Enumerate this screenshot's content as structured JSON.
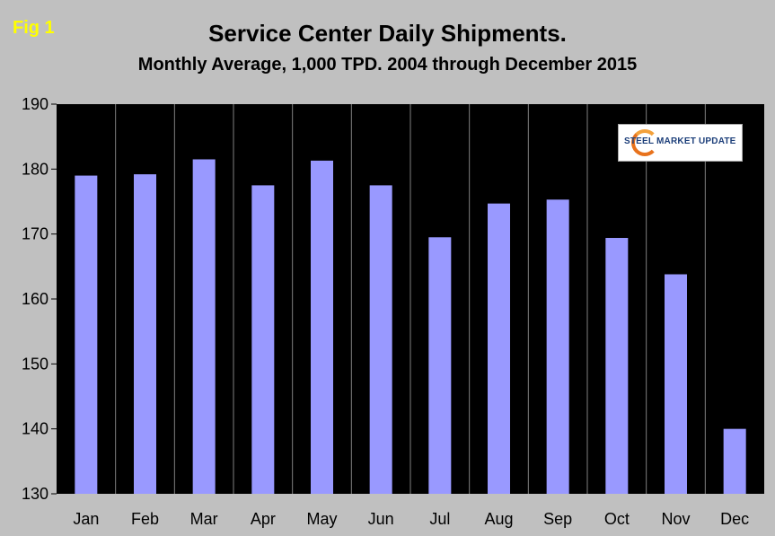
{
  "fig_label": "Fig 1",
  "chart_data": {
    "type": "bar",
    "title": "Service Center Daily Shipments.",
    "subtitle": "Monthly Average, 1,000 TPD.  2004 through December 2015",
    "categories": [
      "Jan",
      "Feb",
      "Mar",
      "Apr",
      "May",
      "Jun",
      "Jul",
      "Aug",
      "Sep",
      "Oct",
      "Nov",
      "Dec"
    ],
    "values": [
      179.0,
      179.2,
      181.5,
      177.5,
      181.3,
      177.5,
      169.5,
      174.7,
      175.3,
      169.4,
      163.8,
      140.0
    ],
    "ylim": [
      130,
      190
    ],
    "yticks": [
      130,
      140,
      150,
      160,
      170,
      180,
      190
    ],
    "grid": "vertical",
    "bar_color": "#9999ff",
    "plot_background": "#000000",
    "xlabel": "",
    "ylabel": ""
  },
  "logo": {
    "name": "STEEL MARKET UPDATE",
    "icon": "swoosh-logo-icon"
  }
}
